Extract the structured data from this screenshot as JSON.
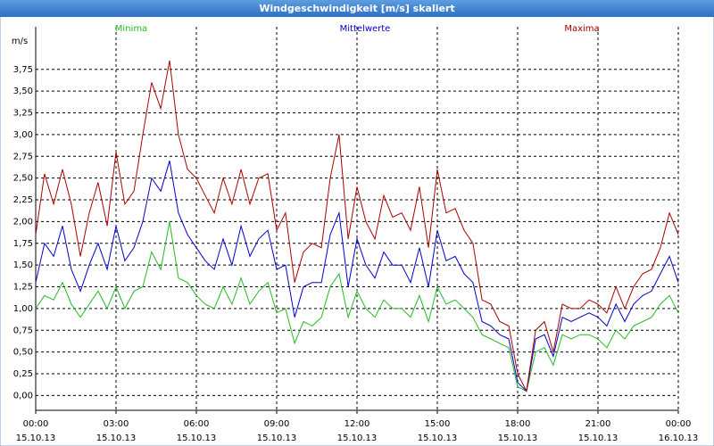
{
  "chart_data": {
    "type": "line",
    "title": "Windgeschwindigkeit [m/s] skaliert",
    "ylabel": "m/s",
    "x": [
      0,
      0.33,
      0.67,
      1,
      1.33,
      1.67,
      2,
      2.33,
      2.67,
      3,
      3.33,
      3.67,
      4,
      4.33,
      4.67,
      5,
      5.33,
      5.67,
      6,
      6.33,
      6.67,
      7,
      7.33,
      7.67,
      8,
      8.33,
      8.67,
      9,
      9.33,
      9.67,
      10,
      10.33,
      10.67,
      11,
      11.33,
      11.67,
      12,
      12.33,
      12.67,
      13,
      13.33,
      13.67,
      14,
      14.33,
      14.67,
      15,
      15.33,
      15.67,
      16,
      16.33,
      16.67,
      17,
      17.33,
      17.67,
      18,
      18.33,
      18.67,
      19,
      19.33,
      19.67,
      20,
      20.33,
      20.67,
      21,
      21.33,
      21.67,
      22,
      22.33,
      22.67,
      23,
      23.33,
      23.67,
      24
    ],
    "series": [
      {
        "name": "Minima",
        "color": "#22bb22",
        "values": [
          1.0,
          1.15,
          1.1,
          1.3,
          1.05,
          0.9,
          1.05,
          1.2,
          1.0,
          1.25,
          1.0,
          1.2,
          1.25,
          1.65,
          1.45,
          2.0,
          1.35,
          1.3,
          1.15,
          1.05,
          1.0,
          1.25,
          1.05,
          1.35,
          1.05,
          1.2,
          1.3,
          0.95,
          1.0,
          0.6,
          0.85,
          0.8,
          0.9,
          1.25,
          1.4,
          0.9,
          1.2,
          1.0,
          0.9,
          1.1,
          1.0,
          1.0,
          0.9,
          1.15,
          0.85,
          1.25,
          1.05,
          1.1,
          1.0,
          0.9,
          0.7,
          0.65,
          0.6,
          0.55,
          0.1,
          0.05,
          0.5,
          0.55,
          0.35,
          0.7,
          0.65,
          0.7,
          0.7,
          0.65,
          0.55,
          0.75,
          0.65,
          0.8,
          0.85,
          0.9,
          1.05,
          1.15,
          0.95
        ]
      },
      {
        "name": "Mittelwerte",
        "color": "#0000cc",
        "values": [
          1.3,
          1.75,
          1.6,
          1.95,
          1.45,
          1.2,
          1.5,
          1.75,
          1.45,
          1.95,
          1.55,
          1.7,
          2.0,
          2.5,
          2.35,
          2.7,
          2.1,
          1.85,
          1.7,
          1.55,
          1.45,
          1.8,
          1.5,
          1.95,
          1.6,
          1.8,
          1.9,
          1.45,
          1.5,
          0.9,
          1.25,
          1.3,
          1.3,
          1.85,
          2.1,
          1.25,
          1.8,
          1.5,
          1.35,
          1.65,
          1.5,
          1.5,
          1.3,
          1.7,
          1.25,
          1.9,
          1.55,
          1.6,
          1.4,
          1.3,
          0.85,
          0.8,
          0.7,
          0.65,
          0.15,
          0.05,
          0.65,
          0.7,
          0.45,
          0.9,
          0.85,
          0.9,
          0.95,
          0.9,
          0.8,
          1.05,
          0.85,
          1.05,
          1.15,
          1.2,
          1.4,
          1.6,
          1.3
        ]
      },
      {
        "name": "Maxima",
        "color": "#aa0000",
        "values": [
          1.85,
          2.55,
          2.2,
          2.6,
          2.2,
          1.6,
          2.1,
          2.45,
          1.95,
          2.8,
          2.2,
          2.35,
          3.0,
          3.6,
          3.3,
          3.85,
          3.0,
          2.6,
          2.5,
          2.3,
          2.1,
          2.5,
          2.2,
          2.6,
          2.2,
          2.5,
          2.55,
          1.9,
          2.1,
          1.3,
          1.65,
          1.75,
          1.7,
          2.5,
          3.0,
          1.8,
          2.4,
          2.0,
          1.8,
          2.3,
          2.05,
          2.1,
          1.9,
          2.4,
          1.7,
          2.6,
          2.1,
          2.15,
          1.9,
          1.75,
          1.1,
          1.05,
          0.85,
          0.8,
          0.25,
          0.05,
          0.75,
          0.85,
          0.5,
          1.05,
          1.0,
          1.0,
          1.1,
          1.05,
          0.95,
          1.25,
          1.0,
          1.25,
          1.4,
          1.45,
          1.7,
          2.1,
          1.85
        ]
      }
    ],
    "xlim": [
      0,
      24
    ],
    "xticks": [
      {
        "value": 0,
        "label": "00:00"
      },
      {
        "value": 3,
        "label": "03:00"
      },
      {
        "value": 6,
        "label": "06:00"
      },
      {
        "value": 9,
        "label": "09:00"
      },
      {
        "value": 12,
        "label": "12:00"
      },
      {
        "value": 15,
        "label": "15:00"
      },
      {
        "value": 18,
        "label": "18:00"
      },
      {
        "value": 21,
        "label": "21:00"
      },
      {
        "value": 24,
        "label": "00:00"
      }
    ],
    "xtick_dates": [
      "15.10.13",
      "15.10.13",
      "15.10.13",
      "15.10.13",
      "15.10.13",
      "15.10.13",
      "15.10.13",
      "15.10.13",
      "16.10.13"
    ],
    "ylim": [
      -0.17,
      4.24
    ],
    "yticks": [
      {
        "value": 0,
        "label": "0,00"
      },
      {
        "value": 0.25,
        "label": "0,25"
      },
      {
        "value": 0.5,
        "label": "0,50"
      },
      {
        "value": 0.75,
        "label": "0,75"
      },
      {
        "value": 1,
        "label": "1,00"
      },
      {
        "value": 1.25,
        "label": "1,25"
      },
      {
        "value": 1.5,
        "label": "1,50"
      },
      {
        "value": 1.75,
        "label": "1,75"
      },
      {
        "value": 2,
        "label": "2,00"
      },
      {
        "value": 2.25,
        "label": "2,25"
      },
      {
        "value": 2.5,
        "label": "2,50"
      },
      {
        "value": 2.75,
        "label": "2,75"
      },
      {
        "value": 3,
        "label": "3,00"
      },
      {
        "value": 3.25,
        "label": "3,25"
      },
      {
        "value": 3.5,
        "label": "3,50"
      },
      {
        "value": 3.75,
        "label": "3,75"
      }
    ],
    "grid": true
  }
}
